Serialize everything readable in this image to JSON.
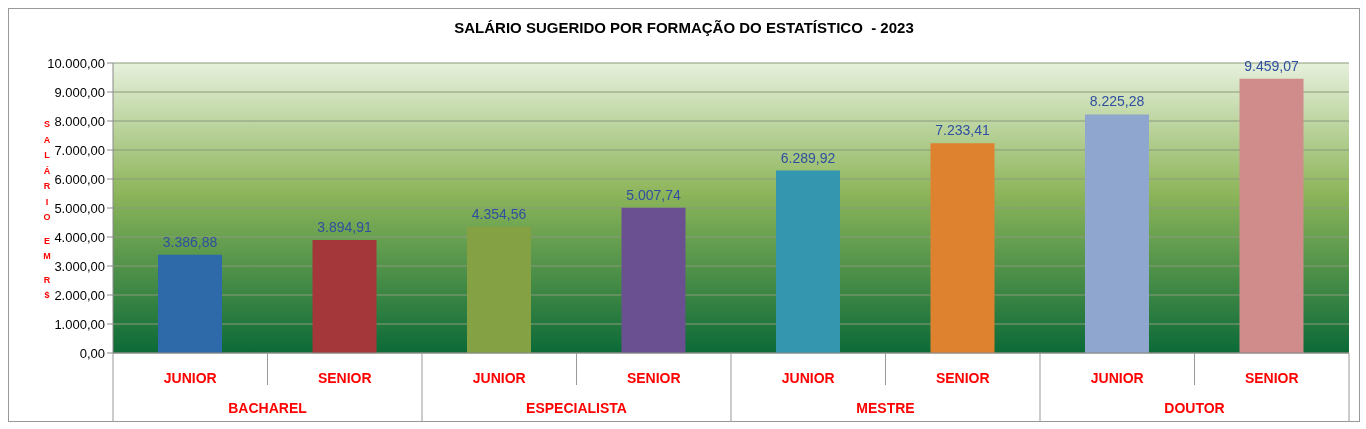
{
  "chart_data": {
    "type": "bar",
    "title": "SALÁRIO SUGERIDO POR FORMAÇÃO DO ESTATÍSTICO  - 2023",
    "ylabel": "SALÁRIO EM R$",
    "categories": [
      "JUNIOR",
      "SENIOR",
      "JUNIOR",
      "SENIOR",
      "JUNIOR",
      "SENIOR",
      "JUNIOR",
      "SENIOR"
    ],
    "annotations": [
      "BACHAREL",
      "ESPECIALISTA",
      "MESTRE",
      "DOUTOR"
    ],
    "values": [
      3386.88,
      3894.91,
      4354.56,
      5007.74,
      6289.92,
      7233.41,
      8225.28,
      9459.07
    ],
    "value_labels": [
      "3.386,88",
      "3.894,91",
      "4.354,56",
      "5.007,74",
      "6.289,92",
      "7.233,41",
      "8.225,28",
      "9.459,07"
    ],
    "colors": [
      "#2e6aa9",
      "#a4373a",
      "#84a143",
      "#6a5090",
      "#3596b0",
      "#df8230",
      "#8fa6cf",
      "#d08c8b"
    ],
    "ylim": [
      0,
      10000
    ],
    "yticks": [
      {
        "value": 0,
        "label": "0,00"
      },
      {
        "value": 1000,
        "label": "1.000,00"
      },
      {
        "value": 2000,
        "label": "2.000,00"
      },
      {
        "value": 3000,
        "label": "3.000,00"
      },
      {
        "value": 4000,
        "label": "4.000,00"
      },
      {
        "value": 5000,
        "label": "5.000,00"
      },
      {
        "value": 6000,
        "label": "6.000,00"
      },
      {
        "value": 7000,
        "label": "7.000,00"
      },
      {
        "value": 8000,
        "label": "8.000,00"
      },
      {
        "value": 9000,
        "label": "9.000,00"
      },
      {
        "value": 10000,
        "label": "10.000,00"
      }
    ],
    "grid": "y"
  }
}
